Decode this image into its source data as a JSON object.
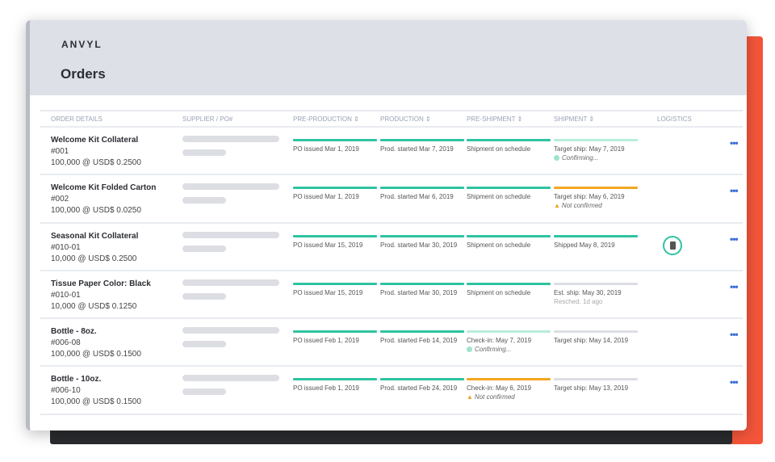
{
  "brand": "ANVYL",
  "page_title": "Orders",
  "colors": {
    "complete": "#2ec4a0",
    "pending": "#b8ecdc",
    "warning": "#f5a623",
    "empty": "#dcdee4",
    "accent": "#f4553a"
  },
  "columns": [
    "ORDER DETAILS",
    "SUPPLIER / PO#",
    "PRE-PRODUCTION ⇕",
    "PRODUCTION ⇕",
    "PRE-SHIPMENT ⇕",
    "SHIPMENT ⇕",
    "LOGISTICS"
  ],
  "rows": [
    {
      "name": "Welcome Kit Collateral",
      "po": "#001",
      "qty": "100,000 @ USD$ 0.2500",
      "logistics": false,
      "stages": [
        {
          "status": "complete",
          "text": "PO issued Mar 1, 2019"
        },
        {
          "status": "complete",
          "text": "Prod. started Mar 7, 2019"
        },
        {
          "status": "complete",
          "text": "Shipment on schedule"
        },
        {
          "status": "pending",
          "text": "Target ship: May 7, 2019",
          "sub": "Confirming...",
          "sub_icon": "clock-icon"
        }
      ]
    },
    {
      "name": "Welcome Kit Folded Carton",
      "po": "#002",
      "qty": "100,000 @ USD$ 0.0250",
      "logistics": false,
      "stages": [
        {
          "status": "complete",
          "text": "PO issued Mar 1, 2019"
        },
        {
          "status": "complete",
          "text": "Prod. started Mar 6, 2019"
        },
        {
          "status": "complete",
          "text": "Shipment on schedule"
        },
        {
          "status": "warning",
          "text": "Target ship: May 6, 2019",
          "sub": "Not confirmed",
          "sub_icon": "warning-icon"
        }
      ]
    },
    {
      "name": "Seasonal Kit Collateral",
      "po": "#010-01",
      "qty": "10,000 @ USD$ 0.2500",
      "logistics": true,
      "stages": [
        {
          "status": "complete",
          "text": "PO issued Mar 15, 2019"
        },
        {
          "status": "complete",
          "text": "Prod. started Mar 30, 2019"
        },
        {
          "status": "complete",
          "text": "Shipment on schedule"
        },
        {
          "status": "complete",
          "text": "Shipped May 8, 2019"
        }
      ]
    },
    {
      "name": "Tissue Paper Color: Black",
      "po": "#010-01",
      "qty": "10,000 @ USD$ 0.1250",
      "logistics": false,
      "stages": [
        {
          "status": "complete",
          "text": "PO issued Mar 15, 2019"
        },
        {
          "status": "complete",
          "text": "Prod. started Mar 30, 2019"
        },
        {
          "status": "complete",
          "text": "Shipment on schedule"
        },
        {
          "status": "empty",
          "text": "Est. ship: May 30, 2019",
          "sub": "Resched. 1d ago",
          "sub_icon": ""
        }
      ]
    },
    {
      "name": "Bottle - 8oz.",
      "po": "#006-08",
      "qty": "100,000 @ USD$ 0.1500",
      "logistics": false,
      "stages": [
        {
          "status": "complete",
          "text": "PO issued Feb 1, 2019"
        },
        {
          "status": "complete",
          "text": "Prod. started Feb 14, 2019"
        },
        {
          "status": "pending",
          "text": "Check-in: May 7, 2019",
          "sub": "Confirming...",
          "sub_icon": "clock-icon"
        },
        {
          "status": "empty",
          "text": "Target ship: May 14, 2019"
        }
      ]
    },
    {
      "name": "Bottle - 10oz.",
      "po": "#006-10",
      "qty": "100,000 @ USD$ 0.1500",
      "logistics": false,
      "stages": [
        {
          "status": "complete",
          "text": "PO issued Feb 1, 2019"
        },
        {
          "status": "complete",
          "text": "Prod. started Feb 24, 2019"
        },
        {
          "status": "warning",
          "text": "Check-in: May 6, 2019",
          "sub": "Not confirmed",
          "sub_icon": "warning-icon"
        },
        {
          "status": "empty",
          "text": "Target ship: May 13, 2019"
        }
      ]
    }
  ],
  "more_label": "•••"
}
